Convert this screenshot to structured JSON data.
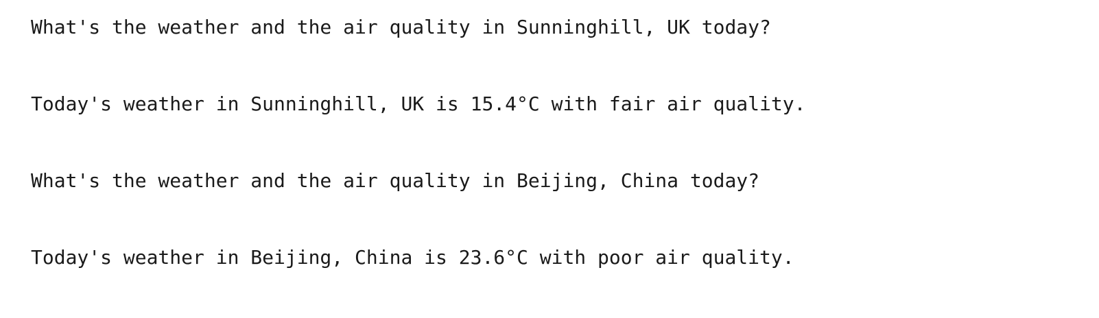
{
  "conversation": [
    {
      "role": "user",
      "text": "What's the weather and the air quality in Sunninghill, UK today?"
    },
    {
      "role": "assistant",
      "text": "Today's weather in Sunninghill, UK is 15.4°C with fair air quality."
    },
    {
      "role": "user",
      "text": "What's the weather and the air quality in Beijing, China today?"
    },
    {
      "role": "assistant",
      "text": "Today's weather in Beijing, China is 23.6°C with poor air quality."
    }
  ]
}
